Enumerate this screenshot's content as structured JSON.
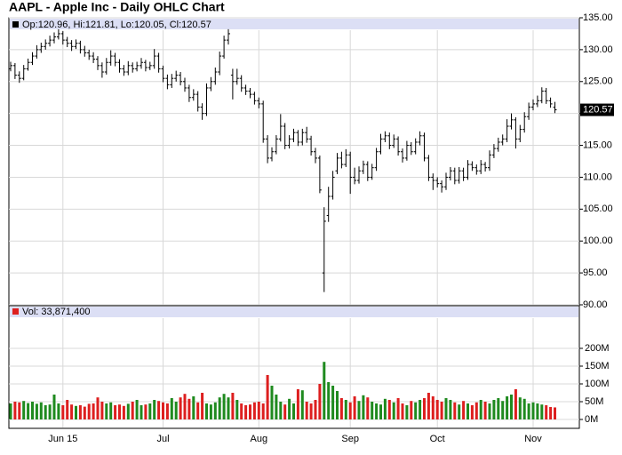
{
  "chart_data": {
    "type": "ohlc",
    "title": "AAPL - Apple Inc - Daily OHLC Chart",
    "legend_text": "Op:120.96, Hi:121.81, Lo:120.05, Cl:120.57",
    "categories": [
      null,
      null,
      null,
      null,
      null,
      null,
      null,
      null,
      null,
      null,
      null,
      null,
      "Jun 15",
      null,
      null,
      null,
      null,
      null,
      null,
      null,
      null,
      null,
      null,
      null,
      null,
      null,
      null,
      null,
      null,
      null,
      null,
      null,
      null,
      null,
      null,
      "Jul",
      null,
      null,
      null,
      null,
      null,
      null,
      null,
      null,
      null,
      null,
      null,
      null,
      null,
      null,
      null,
      null,
      null,
      null,
      null,
      null,
      null,
      "Aug",
      null,
      null,
      null,
      null,
      null,
      null,
      null,
      null,
      null,
      null,
      null,
      null,
      null,
      null,
      null,
      null,
      null,
      null,
      null,
      null,
      "Sep",
      null,
      null,
      null,
      null,
      null,
      null,
      null,
      null,
      null,
      null,
      null,
      null,
      null,
      null,
      null,
      null,
      null,
      null,
      null,
      "Oct",
      null,
      null,
      null,
      null,
      null,
      null,
      null,
      null,
      null,
      null,
      null,
      null,
      null,
      null,
      null,
      null,
      null,
      null,
      null,
      null,
      null,
      "Nov",
      null,
      null,
      null,
      null,
      null
    ],
    "open": [
      127.0,
      127.5,
      126.0,
      125.5,
      127.0,
      128.0,
      129.0,
      130.0,
      130.5,
      131.0,
      131.5,
      132.0,
      132.5,
      131.5,
      131.0,
      130.5,
      131.0,
      130.0,
      129.5,
      129.0,
      128.5,
      127.5,
      126.5,
      128.0,
      129.0,
      128.0,
      127.0,
      126.5,
      127.5,
      127.0,
      127.5,
      128.0,
      127.2,
      127.5,
      129.0,
      127.0,
      125.5,
      124.5,
      125.5,
      126.0,
      125.0,
      124.0,
      122.5,
      123.0,
      121.0,
      120.0,
      124.0,
      125.0,
      126.5,
      129.0,
      131.5,
      126.0,
      125.0,
      125.5,
      124.0,
      123.5,
      123.0,
      122.0,
      121.5,
      116.0,
      113.0,
      114.0,
      116.0,
      118.0,
      115.0,
      116.0,
      117.0,
      115.5,
      117.0,
      116.0,
      114.0,
      113.0,
      95.0,
      104.0,
      107.0,
      111.0,
      113.0,
      112.0,
      113.5,
      110.0,
      109.5,
      111.0,
      112.0,
      110.0,
      111.5,
      114.0,
      116.0,
      116.5,
      115.0,
      116.0,
      114.0,
      113.0,
      115.0,
      114.0,
      115.5,
      116.5,
      113.0,
      110.0,
      109.5,
      109.0,
      108.5,
      110.0,
      111.0,
      109.5,
      111.0,
      110.0,
      112.0,
      111.5,
      111.0,
      112.0,
      111.5,
      113.5,
      114.5,
      115.5,
      116.0,
      118.0,
      119.0,
      116.0,
      117.5,
      119.5,
      121.0,
      121.5,
      122.0,
      123.5,
      122.0,
      120.96
    ],
    "high": [
      128.1,
      127.9,
      126.6,
      127.6,
      128.6,
      129.6,
      130.7,
      131.1,
      131.6,
      132.2,
      132.7,
      133.2,
      132.9,
      132.0,
      131.5,
      131.6,
      131.4,
      130.6,
      130.0,
      129.6,
      129.0,
      128.0,
      128.7,
      129.9,
      129.5,
      128.5,
      127.6,
      128.2,
      128.0,
      128.1,
      128.7,
      128.4,
      128.1,
      130.1,
      129.5,
      127.5,
      126.1,
      126.2,
      126.7,
      126.5,
      125.6,
      124.5,
      123.8,
      123.5,
      121.6,
      124.7,
      125.7,
      127.2,
      129.7,
      132.2,
      133.2,
      127.0,
      127.0,
      126.0,
      124.5,
      124.0,
      123.4,
      122.5,
      122.0,
      116.6,
      114.7,
      116.6,
      119.9,
      118.5,
      116.6,
      117.6,
      117.4,
      117.6,
      117.9,
      116.5,
      114.6,
      113.4,
      105.3,
      108.5,
      111.0,
      113.8,
      114.0,
      114.4,
      114.0,
      111.5,
      111.7,
      112.6,
      112.5,
      112.1,
      114.6,
      116.8,
      117.2,
      117.0,
      116.7,
      116.4,
      114.5,
      115.7,
      115.5,
      116.1,
      117.2,
      117.0,
      113.5,
      110.6,
      110.0,
      109.5,
      110.7,
      111.6,
      111.5,
      111.6,
      111.5,
      112.7,
      112.5,
      112.0,
      112.7,
      112.4,
      114.2,
      115.2,
      116.2,
      116.7,
      119.1,
      120.0,
      119.4,
      118.2,
      120.2,
      121.7,
      122.2,
      122.8,
      124.1,
      124.0,
      122.5,
      121.81
    ],
    "low": [
      126.6,
      125.4,
      124.8,
      125.2,
      126.7,
      127.6,
      128.6,
      129.5,
      130.0,
      130.5,
      131.0,
      131.6,
      130.8,
      130.4,
      129.8,
      130.1,
      129.4,
      128.9,
      128.4,
      127.9,
      126.8,
      125.6,
      126.1,
      127.5,
      127.4,
      126.4,
      125.9,
      126.0,
      126.4,
      126.6,
      127.0,
      126.6,
      126.8,
      127.0,
      126.4,
      124.9,
      123.8,
      124.0,
      125.0,
      124.4,
      123.4,
      121.8,
      122.0,
      120.3,
      119.0,
      119.6,
      123.5,
      124.5,
      126.0,
      128.6,
      130.8,
      122.2,
      124.5,
      123.4,
      122.9,
      122.4,
      121.4,
      120.8,
      115.4,
      112.2,
      112.5,
      113.6,
      115.6,
      114.4,
      114.5,
      115.5,
      114.9,
      115.0,
      115.4,
      113.4,
      112.2,
      107.5,
      92.0,
      103.0,
      106.5,
      110.5,
      111.4,
      111.6,
      107.4,
      108.9,
      109.0,
      110.5,
      109.4,
      109.6,
      111.0,
      113.6,
      115.5,
      114.4,
      114.6,
      113.4,
      112.3,
      112.6,
      113.5,
      113.6,
      115.0,
      112.5,
      109.4,
      108.0,
      108.4,
      107.6,
      108.0,
      109.5,
      108.9,
      109.0,
      109.4,
      109.6,
      111.0,
      110.4,
      110.5,
      110.9,
      111.0,
      113.0,
      114.0,
      115.0,
      115.5,
      117.5,
      114.5,
      115.5,
      117.0,
      119.0,
      120.5,
      121.0,
      121.6,
      121.5,
      120.9,
      120.05
    ],
    "close": [
      127.5,
      126,
      125.5,
      127,
      128,
      129,
      130,
      130.5,
      131,
      131.5,
      132,
      132.5,
      131.5,
      131,
      130.5,
      131,
      130,
      129.5,
      129,
      128.5,
      127.5,
      126.5,
      128,
      129,
      128,
      127,
      126.5,
      127.5,
      127,
      127.5,
      128,
      127.2,
      127.5,
      129,
      127,
      125.5,
      124.5,
      125.5,
      126,
      125,
      124,
      122.5,
      123,
      121,
      120,
      124,
      125,
      126.5,
      129,
      131.5,
      132.5,
      125,
      125.5,
      124,
      123.5,
      123,
      122,
      121.5,
      116,
      113,
      114,
      116,
      118,
      115,
      116,
      117,
      115.5,
      117,
      116,
      114,
      113,
      108,
      103.1,
      107,
      110,
      113,
      112,
      113.5,
      110,
      109.5,
      111,
      112,
      110,
      111.5,
      114,
      116,
      116.5,
      115,
      116,
      114,
      113,
      115,
      114,
      115.5,
      116.5,
      113,
      110,
      109.5,
      109,
      108.5,
      110,
      111,
      109.5,
      111,
      110,
      112,
      111.5,
      111,
      112,
      111.5,
      113.5,
      114.5,
      115.5,
      116,
      118,
      119,
      116,
      117.5,
      119.5,
      121,
      121.5,
      122,
      123.5,
      122,
      121.5,
      120.57
    ],
    "bar_color": "#000000",
    "ylim": [
      90,
      135
    ],
    "yticks": [
      {
        "value": 90,
        "label": "90.00"
      },
      {
        "value": 95,
        "label": "95.00"
      },
      {
        "value": 100,
        "label": "100.00"
      },
      {
        "value": 105,
        "label": "105.00"
      },
      {
        "value": 110,
        "label": "110.00"
      },
      {
        "value": 115,
        "label": "115.00"
      },
      {
        "value": 120,
        "label": "120.00"
      },
      {
        "value": 125,
        "label": "125.00"
      },
      {
        "value": 130,
        "label": "130.00"
      },
      {
        "value": 135,
        "label": "135.00"
      }
    ],
    "grid": true,
    "volume": {
      "title": "Vol: 33,871,400",
      "values": [
        45,
        50,
        48,
        52,
        46,
        50,
        44,
        48,
        40,
        42,
        70,
        45,
        40,
        55,
        42,
        38,
        40,
        36,
        44,
        45,
        62,
        50,
        45,
        48,
        40,
        42,
        38,
        44,
        50,
        55,
        40,
        42,
        45,
        55,
        52,
        48,
        45,
        60,
        50,
        62,
        72,
        58,
        65,
        48,
        75,
        45,
        42,
        48,
        62,
        72,
        62,
        75,
        55,
        45,
        40,
        42,
        48,
        50,
        45,
        125,
        95,
        70,
        50,
        42,
        58,
        45,
        85,
        82,
        50,
        45,
        55,
        100,
        162,
        105,
        95,
        80,
        60,
        55,
        48,
        65,
        52,
        68,
        62,
        50,
        45,
        42,
        58,
        55,
        48,
        60,
        45,
        40,
        52,
        48,
        55,
        60,
        75,
        65,
        55,
        50,
        60,
        55,
        48,
        42,
        52,
        45,
        40,
        48,
        55,
        50,
        45,
        55,
        60,
        52,
        65,
        70,
        85,
        62,
        58,
        45,
        48,
        45,
        42,
        40,
        35,
        33.8714
      ],
      "up_color": "#1f8a1f",
      "down_color": "#dd1f1f",
      "ylim": [
        0,
        285
      ],
      "yticks": [
        {
          "value": 0,
          "label": "0M"
        },
        {
          "value": 50,
          "label": "50M"
        },
        {
          "value": 100,
          "label": "100M"
        },
        {
          "value": 150,
          "label": "150M"
        },
        {
          "value": 200,
          "label": "200M"
        }
      ]
    }
  }
}
